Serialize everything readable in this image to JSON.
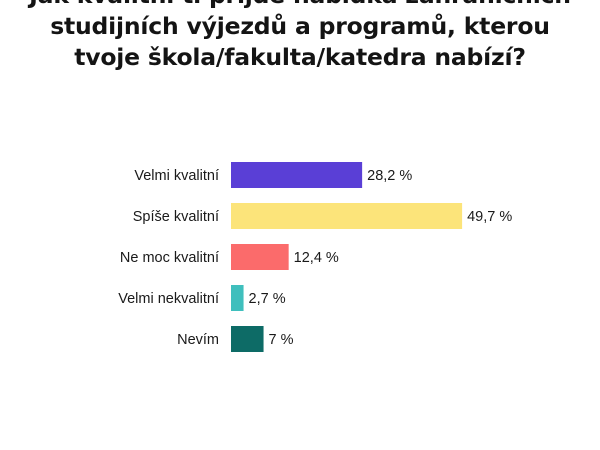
{
  "chart_data": {
    "type": "bar",
    "orientation": "horizontal",
    "title_lines": [
      "Jak kvalitní ti přijde nabídka zahraničních",
      "studijních výjezdů a programů, kterou",
      "tvoje škola/fakulta/katedra nabízí?"
    ],
    "categories": [
      "Velmi kvalitní",
      "Spíše kvalitní",
      "Ne moc kvalitní",
      "Velmi nekvalitní",
      "Nevím"
    ],
    "values": [
      28.2,
      49.7,
      12.4,
      2.7,
      7
    ],
    "value_labels": [
      "28,2 %",
      "49,7 %",
      "12,4 %",
      "2,7 %",
      "7 %"
    ],
    "colors": [
      "#5a3fd6",
      "#fce47a",
      "#fb6b6b",
      "#3fbfbd",
      "#0d6b66"
    ],
    "xlim": [
      0,
      100
    ],
    "grid": false,
    "legend": "none"
  }
}
